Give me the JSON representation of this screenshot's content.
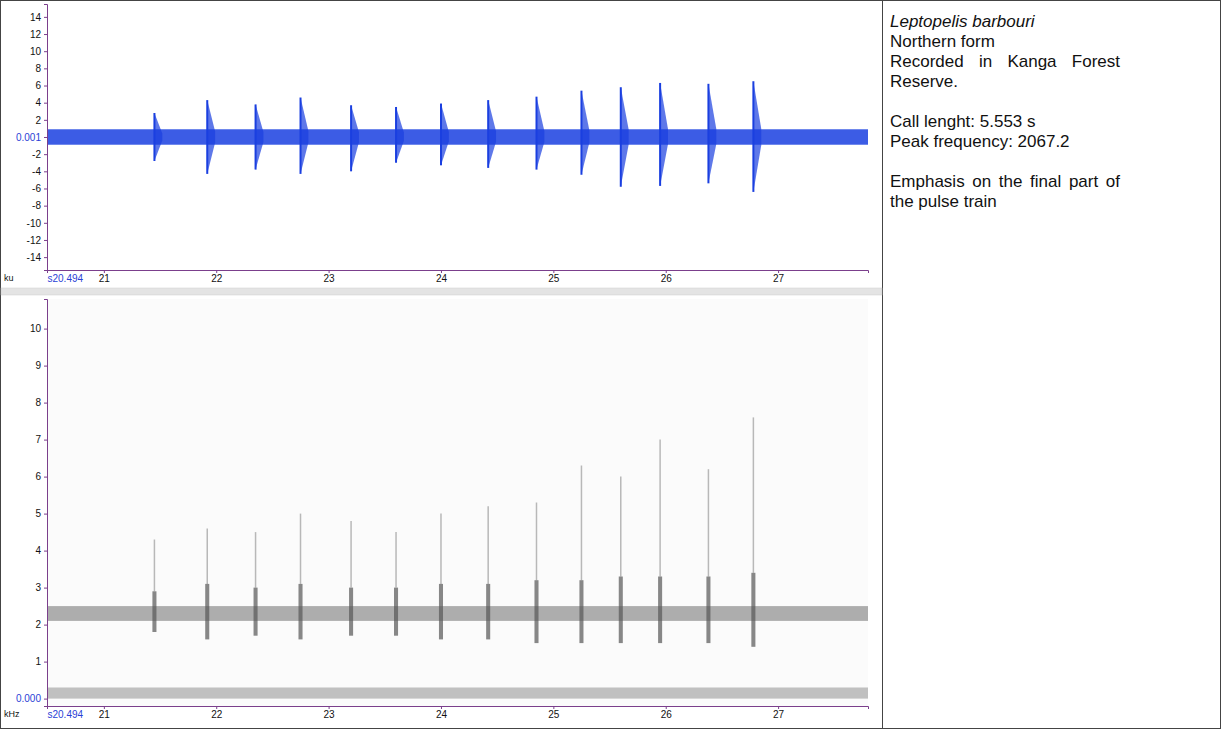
{
  "chart_data": [
    {
      "type": "waveform",
      "x": [
        21.45,
        21.92,
        22.35,
        22.75,
        23.2,
        23.6,
        24.0,
        24.42,
        24.85,
        25.25,
        25.6,
        25.95,
        26.38,
        26.78
      ],
      "values": [
        2.8,
        4.3,
        3.8,
        4.6,
        3.7,
        3.5,
        3.9,
        4.3,
        4.7,
        5.4,
        5.8,
        6.3,
        6.2,
        6.5
      ],
      "troughs": [
        -2.8,
        -4.3,
        -3.8,
        -4.3,
        -4.0,
        -3.0,
        -3.3,
        -3.6,
        -3.8,
        -4.4,
        -5.8,
        -5.7,
        -5.4,
        -6.4
      ],
      "noise": [
        -0.9,
        0.9
      ],
      "color": "#1a3fe0",
      "xlim": [
        20.494,
        27.8
      ],
      "xticks": [
        {
          "value": 20.494,
          "label": "s20.494"
        },
        21,
        22,
        23,
        24,
        25,
        26,
        27
      ],
      "ylim": [
        -15.5,
        15.5
      ],
      "yticks": [
        14,
        12,
        10,
        8,
        6,
        4,
        2,
        0.001,
        -2,
        -4,
        -6,
        -8,
        -10,
        -12,
        -14
      ],
      "y_unit": "ku"
    },
    {
      "type": "spectrogram",
      "x": [
        21.45,
        21.92,
        22.35,
        22.75,
        23.2,
        23.6,
        24.0,
        24.42,
        24.85,
        25.25,
        25.6,
        25.95,
        26.38,
        26.78
      ],
      "pulse_low": [
        1.8,
        1.6,
        1.7,
        1.6,
        1.7,
        1.7,
        1.6,
        1.6,
        1.5,
        1.5,
        1.5,
        1.5,
        1.5,
        1.4
      ],
      "pulse_high": [
        2.9,
        3.1,
        3.0,
        3.1,
        3.0,
        3.0,
        3.1,
        3.1,
        3.2,
        3.2,
        3.3,
        3.3,
        3.3,
        3.4
      ],
      "harmonic_high": [
        4.3,
        4.6,
        4.5,
        5.0,
        4.8,
        4.5,
        5.0,
        5.2,
        5.3,
        6.3,
        6.0,
        7.0,
        6.2,
        7.6
      ],
      "band": [
        2.1,
        2.5
      ],
      "low_band": [
        0,
        0.3
      ],
      "color": "#555555",
      "xlim": [
        20.494,
        27.8
      ],
      "xticks": [
        {
          "value": 20.494,
          "label": "s20.494"
        },
        21,
        22,
        23,
        24,
        25,
        26,
        27
      ],
      "ylim": [
        -0.2,
        10.8
      ],
      "yticks": [
        {
          "value": 0,
          "label": "0.000"
        },
        1,
        2,
        3,
        4,
        5,
        6,
        7,
        8,
        9,
        10
      ],
      "y_unit": "kHz"
    }
  ],
  "caption": {
    "species": "Leptopelis barbouri",
    "form": "Northern form",
    "location": "Recorded in Kanga Forest Reserve.",
    "call_length": "Call lenght: 5.553 s",
    "peak_frequency": "Peak frequency: 2067.2",
    "note": "Emphasis on the final part of the pulse train"
  }
}
